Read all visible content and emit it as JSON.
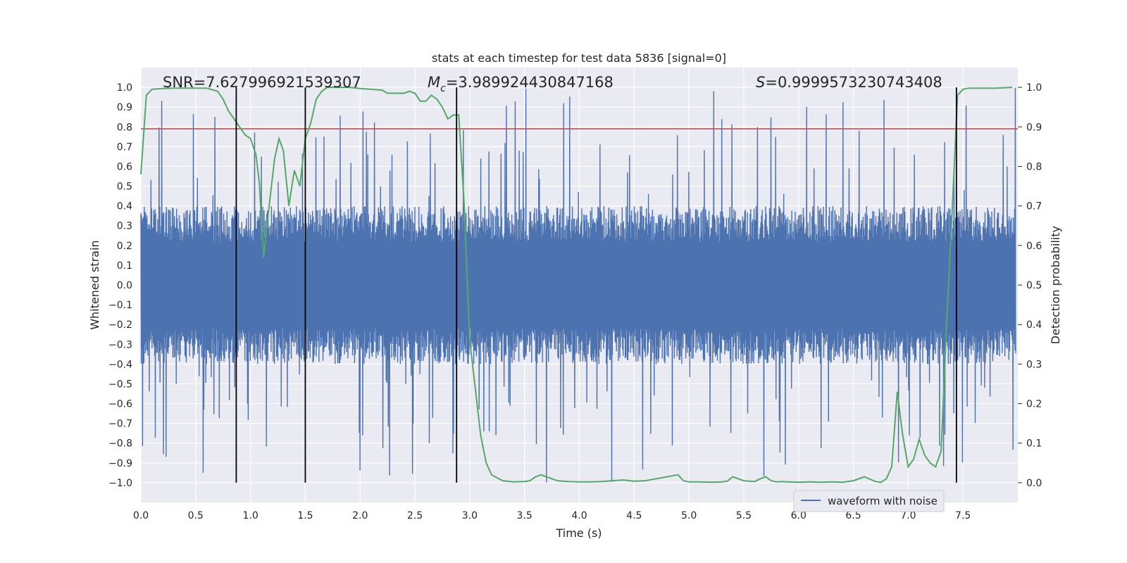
{
  "chart_data": {
    "type": "line",
    "title": "stats at each timestep for test data 5836 [signal=0]",
    "xlabel": "Time (s)",
    "ylabel": "Whitened strain",
    "y2label": "Detection probability",
    "xlim": [
      0.0,
      8.0
    ],
    "ylim": [
      -1.1,
      1.1
    ],
    "y2lim": [
      -0.05,
      1.05
    ],
    "xticks": [
      "0.0",
      "0.5",
      "1.0",
      "1.5",
      "2.0",
      "2.5",
      "3.0",
      "3.5",
      "4.0",
      "4.5",
      "5.0",
      "5.5",
      "6.0",
      "6.5",
      "7.0",
      "7.5"
    ],
    "yticks": [
      "1.0",
      "0.9",
      "0.8",
      "0.7",
      "0.6",
      "0.5",
      "0.4",
      "0.3",
      "0.2",
      "0.1",
      "0.0",
      "−0.1",
      "−0.2",
      "−0.3",
      "−0.4",
      "−0.5",
      "−0.6",
      "−0.7",
      "−0.8",
      "−0.9",
      "−1.0"
    ],
    "y2ticks": [
      "1.0",
      "0.9",
      "0.8",
      "0.7",
      "0.6",
      "0.5",
      "0.4",
      "0.3",
      "0.2",
      "0.1",
      "0.0"
    ],
    "annotations": {
      "snr": "SNR=7.627996921539307",
      "mc_symbol": "M",
      "mc_sub": "c",
      "mc_value": "=3.989924430847168",
      "s_symbol": "S",
      "s_value": "=0.9999573230743408"
    },
    "legend": {
      "label": "waveform with noise",
      "location": "lower-right"
    },
    "threshold_y": 0.79,
    "vertical_lines_x": [
      0.87,
      1.5,
      2.88,
      7.44
    ],
    "colors": {
      "waveform": "#4c72b0",
      "probability": "#55a868",
      "threshold": "#c44e52",
      "vlines": "#000000",
      "background": "#eaeaf2",
      "grid": "#ffffff"
    },
    "series": [
      {
        "name": "waveform with noise",
        "style": "noise",
        "core_amplitude": 0.4,
        "peak_amplitude_range": [
          -1.0,
          1.0
        ]
      },
      {
        "style": "probability",
        "axis": "right",
        "x": [
          0.0,
          0.05,
          0.1,
          0.2,
          0.3,
          0.4,
          0.5,
          0.6,
          0.7,
          0.75,
          0.8,
          0.85,
          0.9,
          0.95,
          1.0,
          1.05,
          1.08,
          1.12,
          1.17,
          1.22,
          1.26,
          1.3,
          1.35,
          1.4,
          1.45,
          1.5,
          1.55,
          1.6,
          1.65,
          1.7,
          1.75,
          1.8,
          1.9,
          2.0,
          2.1,
          2.2,
          2.25,
          2.3,
          2.4,
          2.45,
          2.5,
          2.55,
          2.6,
          2.65,
          2.7,
          2.75,
          2.8,
          2.85,
          2.9,
          2.95,
          3.0,
          3.05,
          3.1,
          3.15,
          3.2,
          3.3,
          3.4,
          3.5,
          3.55,
          3.6,
          3.65,
          3.7,
          3.75,
          3.8,
          3.9,
          4.0,
          4.1,
          4.2,
          4.3,
          4.4,
          4.5,
          4.6,
          4.7,
          4.8,
          4.9,
          4.95,
          5.0,
          5.1,
          5.2,
          5.3,
          5.35,
          5.4,
          5.45,
          5.5,
          5.6,
          5.65,
          5.7,
          5.75,
          5.8,
          5.85,
          5.9,
          6.0,
          6.1,
          6.2,
          6.3,
          6.4,
          6.5,
          6.6,
          6.7,
          6.75,
          6.8,
          6.85,
          6.9,
          6.95,
          7.0,
          7.05,
          7.1,
          7.15,
          7.2,
          7.25,
          7.3,
          7.35,
          7.4,
          7.45,
          7.5,
          7.55,
          7.6,
          7.7,
          7.8,
          7.95
        ],
        "y": [
          0.78,
          0.98,
          0.995,
          0.997,
          0.998,
          0.998,
          0.998,
          0.998,
          0.99,
          0.97,
          0.94,
          0.92,
          0.9,
          0.88,
          0.87,
          0.83,
          0.76,
          0.57,
          0.7,
          0.82,
          0.87,
          0.84,
          0.7,
          0.79,
          0.75,
          0.87,
          0.91,
          0.97,
          0.99,
          1.0,
          1.0,
          1.0,
          1.0,
          0.997,
          0.995,
          0.993,
          0.985,
          0.985,
          0.985,
          0.99,
          0.985,
          0.965,
          0.965,
          0.98,
          0.97,
          0.95,
          0.92,
          0.93,
          0.93,
          0.7,
          0.36,
          0.24,
          0.12,
          0.05,
          0.02,
          0.005,
          0.002,
          0.003,
          0.005,
          0.015,
          0.02,
          0.015,
          0.01,
          0.005,
          0.003,
          0.002,
          0.002,
          0.003,
          0.005,
          0.007,
          0.004,
          0.005,
          0.01,
          0.015,
          0.02,
          0.005,
          0.002,
          0.002,
          0.001,
          0.002,
          0.004,
          0.015,
          0.01,
          0.005,
          0.003,
          0.01,
          0.015,
          0.005,
          0.002,
          0.003,
          0.002,
          0.001,
          0.002,
          0.001,
          0.002,
          0.001,
          0.005,
          0.015,
          0.003,
          0.001,
          0.01,
          0.04,
          0.23,
          0.12,
          0.04,
          0.06,
          0.11,
          0.07,
          0.05,
          0.04,
          0.08,
          0.4,
          0.68,
          0.98,
          0.995,
          0.998,
          0.998,
          0.998,
          0.998,
          1.0
        ]
      }
    ]
  }
}
